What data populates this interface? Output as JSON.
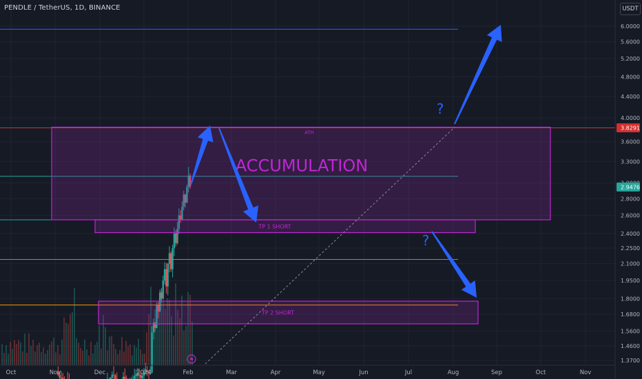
{
  "header": {
    "symbol_title": "PENDLE / TetherUS, 1D, BINANCE",
    "currency_button": "USDT"
  },
  "colors": {
    "background": "#161a25",
    "grid": "#1f2431",
    "candle_up": "#26a69a",
    "candle_down": "#ef5350",
    "zone_stroke": "#c026d3",
    "zone_fill": "#9c27b0",
    "zone_text": "#c026d3",
    "arrow": "#2962ff",
    "ath_line": "#d32f2f",
    "top_line": "#2962ff",
    "current_price_line": "#26a69a",
    "support_line": "#4caf50",
    "tp2_line": "#ff9800"
  },
  "chart_data": {
    "type": "candlestick",
    "title": "PENDLE / TetherUS, 1D, BINANCE",
    "y_scale": "log",
    "ylim": [
      1.33,
      6.55
    ],
    "x_axis_ticks": [
      "Oct",
      "Nov",
      "Dec",
      "2024",
      "Feb",
      "Mar",
      "Apr",
      "May",
      "Jun",
      "Jul",
      "Aug",
      "Sep",
      "Oct",
      "Nov"
    ],
    "y_axis_ticks": [
      "6.0000",
      "5.6000",
      "5.2000",
      "4.8000",
      "4.4000",
      "4.0000",
      "3.6000",
      "3.3000",
      "3.0000",
      "2.8000",
      "2.6000",
      "2.4000",
      "2.2500",
      "2.1000",
      "1.9500",
      "1.8000",
      "1.6800",
      "1.5600",
      "1.4600",
      "1.3700"
    ],
    "y_axis_tick_values": [
      6.0,
      5.6,
      5.2,
      4.8,
      4.4,
      4.0,
      3.6,
      3.3,
      3.0,
      2.8,
      2.6,
      2.4,
      2.25,
      2.1,
      1.95,
      1.8,
      1.68,
      1.56,
      1.46,
      1.37
    ],
    "price_labels": [
      {
        "text": "3.8291",
        "value": 3.8291,
        "color": "#d32f2f"
      },
      {
        "text": "2.9476",
        "value": 2.9476,
        "color": "#26a69a"
      }
    ],
    "horizontal_lines": [
      {
        "name": "top-target-line",
        "value": 5.92,
        "color": "#2962ff"
      },
      {
        "name": "ath-line",
        "value": 3.8291,
        "color": "#d32f2f"
      },
      {
        "name": "range-mid-line",
        "value": 3.09,
        "color": "#26a69a"
      },
      {
        "name": "accumulation-floor-line",
        "value": 2.55,
        "color": "#26a69a"
      },
      {
        "name": "support-line",
        "value": 2.14,
        "color": "#4caf50"
      },
      {
        "name": "tp2-level-line",
        "value": 1.75,
        "color": "#ff9800"
      }
    ],
    "zones": [
      {
        "name": "accumulation-zone",
        "label": "ACCUMULATION",
        "sublabel": "ATH",
        "low": 2.55,
        "high": 3.84
      },
      {
        "name": "tp1-short-zone",
        "label": "TP 1 SHORT",
        "low": 2.41,
        "high": 2.55
      },
      {
        "name": "tp2-short-zone",
        "label": "TP 2 SHORT",
        "low": 1.61,
        "high": 1.78
      }
    ],
    "annotations": [
      "?",
      "?"
    ]
  }
}
